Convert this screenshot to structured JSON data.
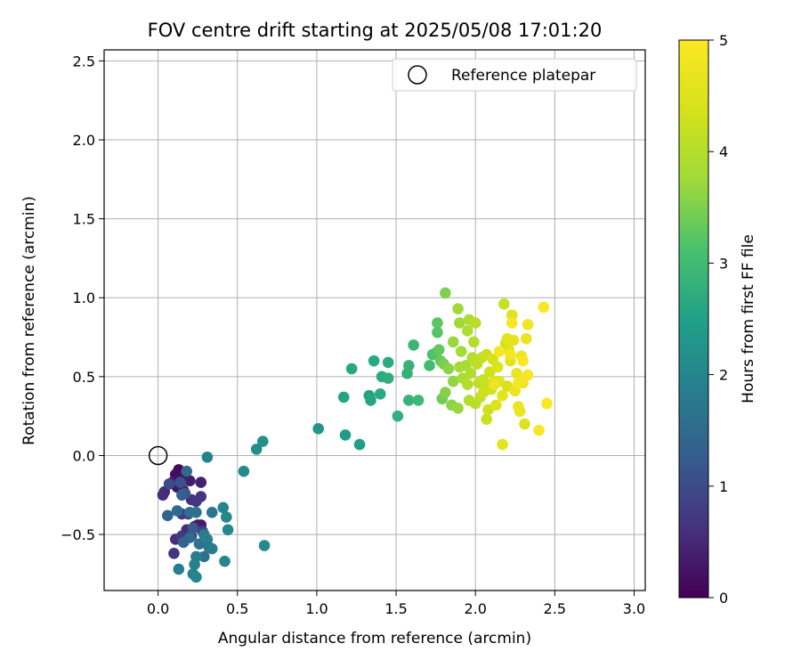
{
  "chart_data": {
    "type": "scatter",
    "title": "FOV centre drift starting at 2025/05/08 17:01:20",
    "xlabel": "Angular distance from reference (arcmin)",
    "ylabel": "Rotation from reference (arcmin)",
    "xlim": [
      -0.34,
      3.07
    ],
    "ylim": [
      -0.855,
      2.57
    ],
    "xticks": [
      0.0,
      0.5,
      1.0,
      1.5,
      2.0,
      2.5,
      3.0
    ],
    "xtick_labels": [
      "0.0",
      "0.5",
      "1.0",
      "1.5",
      "2.0",
      "2.5",
      "3.0"
    ],
    "yticks": [
      -0.5,
      0.0,
      0.5,
      1.0,
      1.5,
      2.0,
      2.5
    ],
    "ytick_labels": [
      "−0.5",
      "0.0",
      "0.5",
      "1.0",
      "1.5",
      "2.0",
      "2.5"
    ],
    "grid": true,
    "legend": {
      "placement": "top-right",
      "entries": [
        "Reference platepar"
      ]
    },
    "reference_point": {
      "x": 0.0,
      "y": 0.0
    },
    "colormap": "viridis",
    "colorbar": {
      "label": "Hours from first FF file",
      "range": [
        0,
        5
      ],
      "ticks": [
        0,
        1,
        2,
        3,
        4,
        5
      ],
      "tick_labels": [
        "0",
        "1",
        "2",
        "3",
        "4",
        "5"
      ]
    },
    "points": [
      {
        "x": 0.13,
        "y": -0.09,
        "c": 0.1
      },
      {
        "x": 0.11,
        "y": -0.12,
        "c": 0.15
      },
      {
        "x": 0.15,
        "y": -0.14,
        "c": 0.2
      },
      {
        "x": 0.09,
        "y": -0.17,
        "c": 0.3
      },
      {
        "x": 0.12,
        "y": -0.2,
        "c": 0.25
      },
      {
        "x": 0.2,
        "y": -0.16,
        "c": 0.35
      },
      {
        "x": 0.27,
        "y": -0.17,
        "c": 0.4
      },
      {
        "x": 0.04,
        "y": -0.23,
        "c": 0.5
      },
      {
        "x": 0.03,
        "y": -0.25,
        "c": 0.55
      },
      {
        "x": 0.16,
        "y": -0.22,
        "c": 0.45
      },
      {
        "x": 0.21,
        "y": -0.28,
        "c": 0.6
      },
      {
        "x": 0.27,
        "y": -0.26,
        "c": 0.65
      },
      {
        "x": 0.24,
        "y": -0.29,
        "c": 0.7
      },
      {
        "x": 0.15,
        "y": -0.37,
        "c": 0.75
      },
      {
        "x": 0.19,
        "y": -0.37,
        "c": 0.8
      },
      {
        "x": 0.27,
        "y": -0.44,
        "c": 0.3
      },
      {
        "x": 0.25,
        "y": -0.44,
        "c": 0.35
      },
      {
        "x": 0.23,
        "y": -0.45,
        "c": 0.4
      },
      {
        "x": 0.18,
        "y": -0.47,
        "c": 0.55
      },
      {
        "x": 0.11,
        "y": -0.53,
        "c": 0.6
      },
      {
        "x": 0.15,
        "y": -0.51,
        "c": 0.7
      },
      {
        "x": 0.21,
        "y": -0.51,
        "c": 0.8
      },
      {
        "x": 0.1,
        "y": -0.62,
        "c": 0.65
      },
      {
        "x": 0.28,
        "y": -0.48,
        "c": 0.85
      },
      {
        "x": 0.07,
        "y": -0.18,
        "c": 1.0
      },
      {
        "x": 0.14,
        "y": -0.17,
        "c": 1.1
      },
      {
        "x": 0.18,
        "y": -0.1,
        "c": 1.5
      },
      {
        "x": 0.17,
        "y": -0.24,
        "c": 1.2
      },
      {
        "x": 0.15,
        "y": -0.25,
        "c": 1.3
      },
      {
        "x": 0.06,
        "y": -0.38,
        "c": 1.4
      },
      {
        "x": 0.12,
        "y": -0.35,
        "c": 1.5
      },
      {
        "x": 0.2,
        "y": -0.36,
        "c": 1.6
      },
      {
        "x": 0.24,
        "y": -0.36,
        "c": 1.65
      },
      {
        "x": 0.34,
        "y": -0.36,
        "c": 1.7
      },
      {
        "x": 0.22,
        "y": -0.46,
        "c": 1.2
      },
      {
        "x": 0.29,
        "y": -0.5,
        "c": 1.8
      },
      {
        "x": 0.26,
        "y": -0.56,
        "c": 1.7
      },
      {
        "x": 0.31,
        "y": -0.53,
        "c": 1.9
      },
      {
        "x": 0.32,
        "y": -0.58,
        "c": 1.75
      },
      {
        "x": 0.34,
        "y": -0.59,
        "c": 1.8
      },
      {
        "x": 0.29,
        "y": -0.64,
        "c": 1.65
      },
      {
        "x": 0.24,
        "y": -0.64,
        "c": 1.85
      },
      {
        "x": 0.23,
        "y": -0.69,
        "c": 1.9
      },
      {
        "x": 0.22,
        "y": -0.75,
        "c": 1.95
      },
      {
        "x": 0.24,
        "y": -0.77,
        "c": 2.0
      },
      {
        "x": 0.13,
        "y": -0.72,
        "c": 1.85
      },
      {
        "x": 0.2,
        "y": -0.52,
        "c": 1.5
      },
      {
        "x": 0.16,
        "y": -0.55,
        "c": 1.4
      },
      {
        "x": 0.31,
        "y": -0.01,
        "c": 1.95
      },
      {
        "x": 0.41,
        "y": -0.33,
        "c": 2.0
      },
      {
        "x": 0.43,
        "y": -0.39,
        "c": 2.05
      },
      {
        "x": 0.44,
        "y": -0.47,
        "c": 2.05
      },
      {
        "x": 0.42,
        "y": -0.67,
        "c": 2.0
      },
      {
        "x": 0.67,
        "y": -0.57,
        "c": 2.1
      },
      {
        "x": 0.54,
        "y": -0.1,
        "c": 2.1
      },
      {
        "x": 0.62,
        "y": 0.04,
        "c": 2.15
      },
      {
        "x": 0.66,
        "y": 0.09,
        "c": 2.2
      },
      {
        "x": 1.01,
        "y": 0.17,
        "c": 2.3
      },
      {
        "x": 1.18,
        "y": 0.13,
        "c": 2.4
      },
      {
        "x": 1.27,
        "y": 0.07,
        "c": 2.45
      },
      {
        "x": 1.17,
        "y": 0.37,
        "c": 2.55
      },
      {
        "x": 1.22,
        "y": 0.55,
        "c": 2.6
      },
      {
        "x": 1.33,
        "y": 0.38,
        "c": 2.55
      },
      {
        "x": 1.34,
        "y": 0.35,
        "c": 2.6
      },
      {
        "x": 1.36,
        "y": 0.6,
        "c": 2.65
      },
      {
        "x": 1.4,
        "y": 0.39,
        "c": 2.65
      },
      {
        "x": 1.41,
        "y": 0.5,
        "c": 2.7
      },
      {
        "x": 1.45,
        "y": 0.59,
        "c": 2.7
      },
      {
        "x": 1.45,
        "y": 0.49,
        "c": 2.75
      },
      {
        "x": 1.51,
        "y": 0.25,
        "c": 2.8
      },
      {
        "x": 1.57,
        "y": 0.52,
        "c": 2.8
      },
      {
        "x": 1.58,
        "y": 0.57,
        "c": 2.85
      },
      {
        "x": 1.58,
        "y": 0.35,
        "c": 2.85
      },
      {
        "x": 1.61,
        "y": 0.7,
        "c": 2.9
      },
      {
        "x": 1.64,
        "y": 0.35,
        "c": 2.95
      },
      {
        "x": 1.71,
        "y": 0.57,
        "c": 3.0
      },
      {
        "x": 1.73,
        "y": 0.64,
        "c": 3.1
      },
      {
        "x": 1.75,
        "y": 0.65,
        "c": 3.15
      },
      {
        "x": 1.76,
        "y": 0.78,
        "c": 3.2
      },
      {
        "x": 1.76,
        "y": 0.84,
        "c": 3.25
      },
      {
        "x": 1.77,
        "y": 0.67,
        "c": 3.3
      },
      {
        "x": 1.78,
        "y": 0.6,
        "c": 3.35
      },
      {
        "x": 1.79,
        "y": 0.36,
        "c": 3.4
      },
      {
        "x": 1.8,
        "y": 0.58,
        "c": 3.45
      },
      {
        "x": 1.81,
        "y": 1.03,
        "c": 3.5
      },
      {
        "x": 1.81,
        "y": 0.4,
        "c": 3.55
      },
      {
        "x": 1.83,
        "y": 0.55,
        "c": 3.6
      },
      {
        "x": 1.85,
        "y": 0.32,
        "c": 3.6
      },
      {
        "x": 1.86,
        "y": 0.47,
        "c": 3.65
      },
      {
        "x": 1.86,
        "y": 0.72,
        "c": 3.7
      },
      {
        "x": 1.89,
        "y": 0.3,
        "c": 3.7
      },
      {
        "x": 1.89,
        "y": 0.93,
        "c": 3.75
      },
      {
        "x": 1.9,
        "y": 0.84,
        "c": 3.75
      },
      {
        "x": 1.9,
        "y": 0.56,
        "c": 3.8
      },
      {
        "x": 1.91,
        "y": 0.66,
        "c": 3.8
      },
      {
        "x": 1.92,
        "y": 0.49,
        "c": 3.85
      },
      {
        "x": 1.94,
        "y": 0.57,
        "c": 3.85
      },
      {
        "x": 1.95,
        "y": 0.79,
        "c": 3.9
      },
      {
        "x": 1.96,
        "y": 0.86,
        "c": 3.9
      },
      {
        "x": 1.96,
        "y": 0.35,
        "c": 3.95
      },
      {
        "x": 1.97,
        "y": 0.52,
        "c": 3.95
      },
      {
        "x": 1.98,
        "y": 0.62,
        "c": 4.0
      },
      {
        "x": 1.99,
        "y": 0.72,
        "c": 4.0
      },
      {
        "x": 2.0,
        "y": 0.84,
        "c": 4.05
      },
      {
        "x": 2.0,
        "y": 0.33,
        "c": 4.05
      },
      {
        "x": 2.01,
        "y": 0.58,
        "c": 4.1
      },
      {
        "x": 2.02,
        "y": 0.46,
        "c": 4.1
      },
      {
        "x": 2.03,
        "y": 0.37,
        "c": 4.15
      },
      {
        "x": 2.04,
        "y": 0.62,
        "c": 4.15
      },
      {
        "x": 2.05,
        "y": 0.48,
        "c": 4.2
      },
      {
        "x": 2.06,
        "y": 0.45,
        "c": 4.2
      },
      {
        "x": 2.07,
        "y": 0.23,
        "c": 4.25
      },
      {
        "x": 2.07,
        "y": 0.64,
        "c": 4.25
      },
      {
        "x": 2.08,
        "y": 0.29,
        "c": 4.3
      },
      {
        "x": 2.09,
        "y": 0.53,
        "c": 4.3
      },
      {
        "x": 2.1,
        "y": 0.42,
        "c": 4.35
      },
      {
        "x": 2.11,
        "y": 0.61,
        "c": 4.4
      },
      {
        "x": 2.12,
        "y": 0.47,
        "c": 4.45
      },
      {
        "x": 2.13,
        "y": 0.32,
        "c": 4.5
      },
      {
        "x": 2.14,
        "y": 0.56,
        "c": 4.5
      },
      {
        "x": 2.15,
        "y": 0.47,
        "c": 4.55
      },
      {
        "x": 2.17,
        "y": 0.07,
        "c": 4.6
      },
      {
        "x": 2.17,
        "y": 0.38,
        "c": 4.6
      },
      {
        "x": 2.18,
        "y": 0.96,
        "c": 4.2
      },
      {
        "x": 2.19,
        "y": 0.71,
        "c": 4.3
      },
      {
        "x": 2.2,
        "y": 0.44,
        "c": 4.4
      },
      {
        "x": 2.21,
        "y": 0.67,
        "c": 4.5
      },
      {
        "x": 2.22,
        "y": 0.6,
        "c": 4.6
      },
      {
        "x": 2.23,
        "y": 0.89,
        "c": 4.55
      },
      {
        "x": 2.24,
        "y": 0.73,
        "c": 4.65
      },
      {
        "x": 2.25,
        "y": 0.41,
        "c": 4.7
      },
      {
        "x": 2.26,
        "y": 0.52,
        "c": 4.7
      },
      {
        "x": 2.27,
        "y": 0.31,
        "c": 4.75
      },
      {
        "x": 2.28,
        "y": 0.28,
        "c": 4.7
      },
      {
        "x": 2.29,
        "y": 0.63,
        "c": 4.8
      },
      {
        "x": 2.3,
        "y": 0.46,
        "c": 4.8
      },
      {
        "x": 2.31,
        "y": 0.2,
        "c": 4.5
      },
      {
        "x": 2.32,
        "y": 0.74,
        "c": 4.7
      },
      {
        "x": 2.33,
        "y": 0.83,
        "c": 4.85
      },
      {
        "x": 2.33,
        "y": 0.51,
        "c": 4.9
      },
      {
        "x": 2.4,
        "y": 0.16,
        "c": 4.9
      },
      {
        "x": 2.43,
        "y": 0.94,
        "c": 4.95
      },
      {
        "x": 2.45,
        "y": 0.33,
        "c": 4.95
      },
      {
        "x": 2.27,
        "y": 0.46,
        "c": 4.85
      },
      {
        "x": 2.22,
        "y": 0.64,
        "c": 4.85
      },
      {
        "x": 2.15,
        "y": 0.66,
        "c": 4.9
      },
      {
        "x": 2.23,
        "y": 0.84,
        "c": 4.9
      },
      {
        "x": 2.3,
        "y": 0.6,
        "c": 4.95
      },
      {
        "x": 2.12,
        "y": 0.45,
        "c": 4.75
      },
      {
        "x": 2.2,
        "y": 0.74,
        "c": 4.6
      },
      {
        "x": 2.05,
        "y": 0.4,
        "c": 4.3
      },
      {
        "x": 1.95,
        "y": 0.45,
        "c": 4.0
      }
    ]
  }
}
